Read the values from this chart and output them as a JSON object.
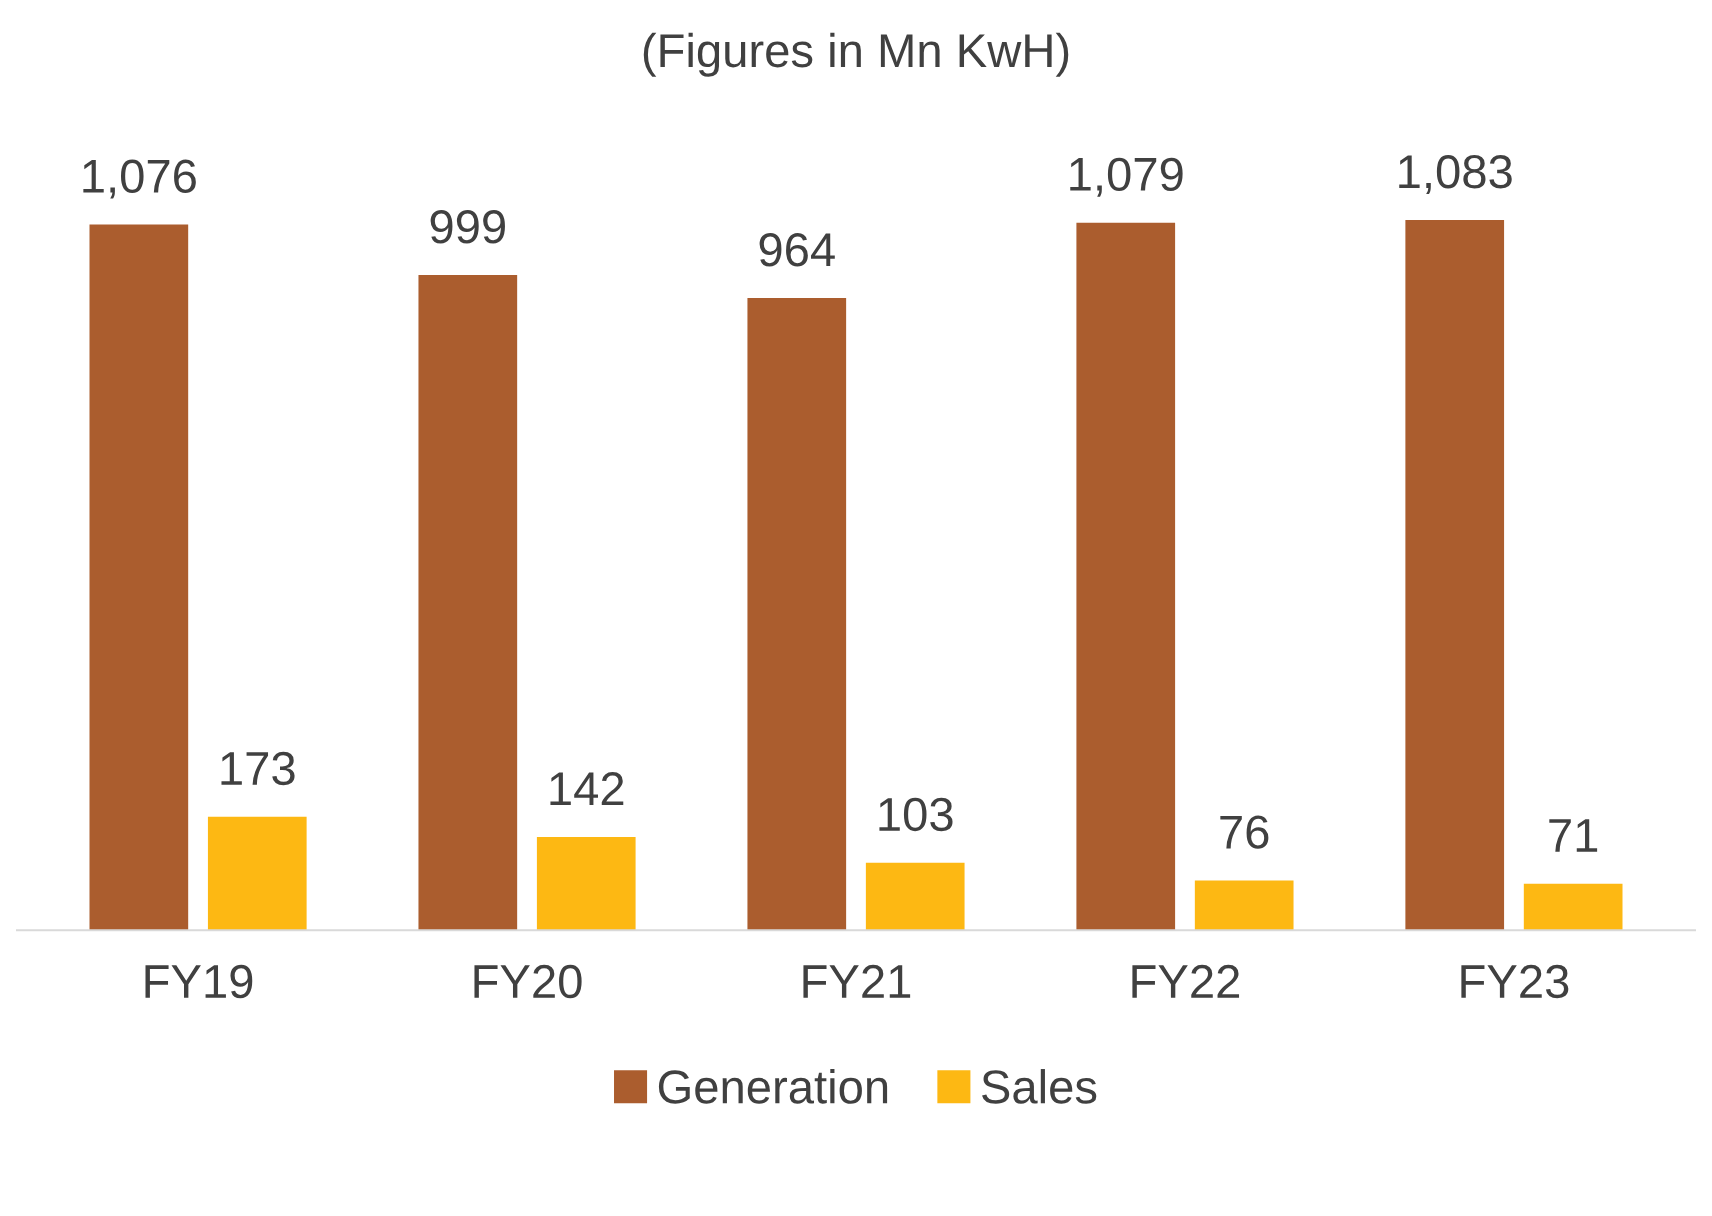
{
  "chart_data": {
    "type": "bar",
    "title": "(Figures in Mn KwH)",
    "categories": [
      "FY19",
      "FY20",
      "FY21",
      "FY22",
      "FY23"
    ],
    "series": [
      {
        "name": "Generation",
        "color": "#ab5d2e",
        "values": [
          1076,
          999,
          964,
          1079,
          1083
        ],
        "value_labels": [
          "1,076",
          "999",
          "964",
          "1,079",
          "1,083"
        ]
      },
      {
        "name": "Sales",
        "color": "#fdb813",
        "values": [
          173,
          142,
          103,
          76,
          71
        ],
        "value_labels": [
          "173",
          "142",
          "103",
          "76",
          "71"
        ]
      }
    ],
    "legend": "bottom",
    "grid": false
  }
}
